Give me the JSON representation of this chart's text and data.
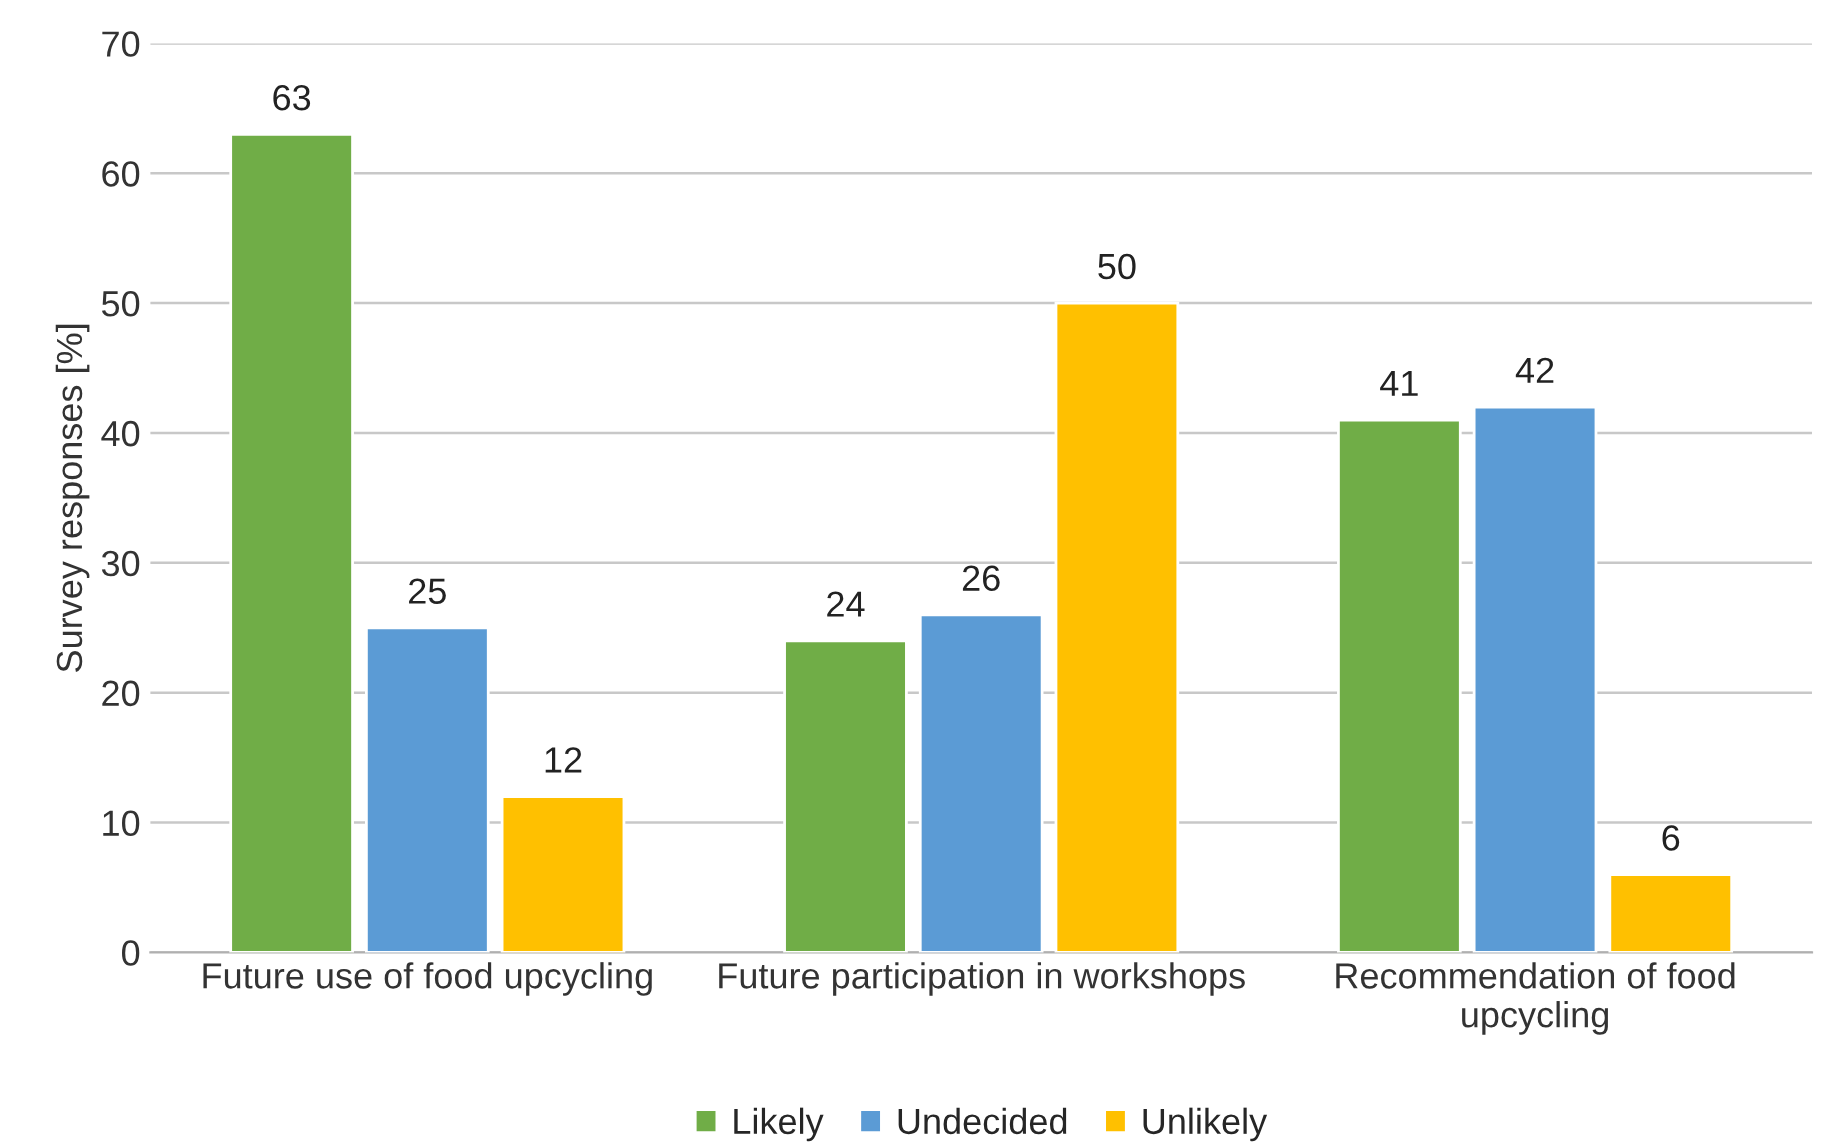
{
  "chart_data": {
    "type": "bar",
    "ylabel": "Survey responses [%]",
    "categories": [
      "Future use of food upcycling",
      "Future participation in workshops",
      "Recommendation of food\nupcycling"
    ],
    "series": [
      {
        "name": "Likely",
        "color": "#70ad47",
        "values": [
          63,
          24,
          41
        ]
      },
      {
        "name": "Undecided",
        "color": "#5b9bd5",
        "values": [
          25,
          26,
          42
        ]
      },
      {
        "name": "Unlikely",
        "color": "#ffc000",
        "values": [
          12,
          50,
          6
        ]
      }
    ],
    "ylim": [
      0,
      70
    ],
    "yticks": [
      0,
      10,
      20,
      30,
      40,
      50,
      60,
      70
    ],
    "grid": "y",
    "legend": "bottom",
    "data_labels": true
  }
}
